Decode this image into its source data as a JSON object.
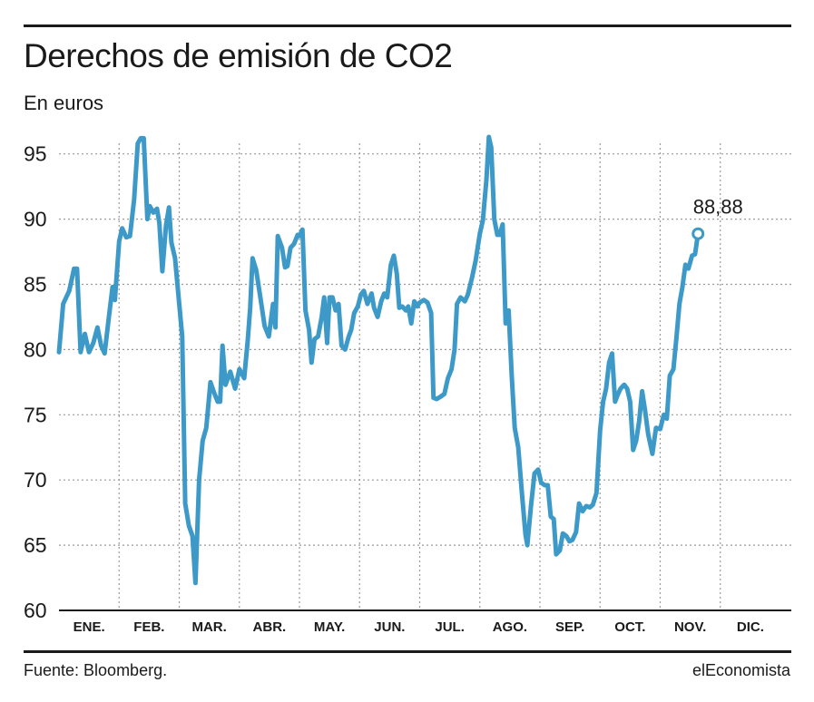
{
  "header": {
    "title": "Derechos de emisión de CO2",
    "subtitle": "En euros"
  },
  "footer": {
    "source": "Fuente: Bloomberg.",
    "brand": "elEconomista"
  },
  "colors": {
    "line": "#3d9ac8",
    "grid": "#9a9a9a",
    "axis": "#1a1a1a"
  },
  "chart_data": {
    "type": "line",
    "title": "Derechos de emisión de CO2",
    "ylabel": "En euros",
    "xlabel": "",
    "ylim": [
      60,
      97
    ],
    "y_ticks": [
      60,
      65,
      70,
      75,
      80,
      85,
      90,
      95
    ],
    "grid": "dotted vertical and horizontal",
    "months": [
      "ENE.",
      "FEB.",
      "MAR.",
      "ABR.",
      "MAY.",
      "JUN.",
      "JUL.",
      "AGO.",
      "SEP.",
      "OCT.",
      "NOV.",
      "DIC."
    ],
    "x_unit": "month index (0 = start of ENE., 12 = end of DIC.)",
    "last_value_label": "88,88",
    "series": [
      {
        "values": [
          [
            0.0,
            79.8
          ],
          [
            0.07,
            83.5
          ],
          [
            0.17,
            84.5
          ],
          [
            0.25,
            86.2
          ],
          [
            0.3,
            86.2
          ],
          [
            0.36,
            79.8
          ],
          [
            0.43,
            81.2
          ],
          [
            0.5,
            79.8
          ],
          [
            0.57,
            80.5
          ],
          [
            0.64,
            81.7
          ],
          [
            0.7,
            80.3
          ],
          [
            0.76,
            79.7
          ],
          [
            0.83,
            82.5
          ],
          [
            0.89,
            84.8
          ],
          [
            0.93,
            83.8
          ],
          [
            1.0,
            88.3
          ],
          [
            1.05,
            89.3
          ],
          [
            1.12,
            88.6
          ],
          [
            1.18,
            88.7
          ],
          [
            1.25,
            91.5
          ],
          [
            1.31,
            95.8
          ],
          [
            1.36,
            96.2
          ],
          [
            1.41,
            96.2
          ],
          [
            1.47,
            90.0
          ],
          [
            1.51,
            91.0
          ],
          [
            1.57,
            90.5
          ],
          [
            1.63,
            90.8
          ],
          [
            1.67,
            89.7
          ],
          [
            1.72,
            86.0
          ],
          [
            1.78,
            89.5
          ],
          [
            1.83,
            90.9
          ],
          [
            1.87,
            88.2
          ],
          [
            1.93,
            87.0
          ],
          [
            2.0,
            83.5
          ],
          [
            2.05,
            81.0
          ],
          [
            2.1,
            68.2
          ],
          [
            2.16,
            66.5
          ],
          [
            2.22,
            65.7
          ],
          [
            2.27,
            62.1
          ],
          [
            2.33,
            70.0
          ],
          [
            2.39,
            73.0
          ],
          [
            2.45,
            74.0
          ],
          [
            2.52,
            77.5
          ],
          [
            2.58,
            76.7
          ],
          [
            2.64,
            76.0
          ],
          [
            2.68,
            76.0
          ],
          [
            2.72,
            80.3
          ],
          [
            2.77,
            77.3
          ],
          [
            2.85,
            78.3
          ],
          [
            2.93,
            77.0
          ],
          [
            3.0,
            78.5
          ],
          [
            3.08,
            77.8
          ],
          [
            3.14,
            80.7
          ],
          [
            3.18,
            83.2
          ],
          [
            3.22,
            87.0
          ],
          [
            3.28,
            86.1
          ],
          [
            3.35,
            84.0
          ],
          [
            3.42,
            81.8
          ],
          [
            3.49,
            81.0
          ],
          [
            3.56,
            83.5
          ],
          [
            3.6,
            81.7
          ],
          [
            3.64,
            88.7
          ],
          [
            3.71,
            87.8
          ],
          [
            3.76,
            86.3
          ],
          [
            3.8,
            86.4
          ],
          [
            3.85,
            87.8
          ],
          [
            3.91,
            88.1
          ],
          [
            3.97,
            88.8
          ],
          [
            4.0,
            88.7
          ],
          [
            4.05,
            89.2
          ],
          [
            4.1,
            83.0
          ],
          [
            4.16,
            81.5
          ],
          [
            4.2,
            79.0
          ],
          [
            4.25,
            80.8
          ],
          [
            4.31,
            81.0
          ],
          [
            4.37,
            82.5
          ],
          [
            4.41,
            84.0
          ],
          [
            4.46,
            80.5
          ],
          [
            4.5,
            84.0
          ],
          [
            4.55,
            84.0
          ],
          [
            4.6,
            83.0
          ],
          [
            4.65,
            83.5
          ],
          [
            4.7,
            80.3
          ],
          [
            4.76,
            80.0
          ],
          [
            4.82,
            81.0
          ],
          [
            4.86,
            81.5
          ],
          [
            4.91,
            82.8
          ],
          [
            4.97,
            83.3
          ],
          [
            5.02,
            84.2
          ],
          [
            5.07,
            84.5
          ],
          [
            5.13,
            83.5
          ],
          [
            5.2,
            84.3
          ],
          [
            5.24,
            83.2
          ],
          [
            5.3,
            82.5
          ],
          [
            5.36,
            83.7
          ],
          [
            5.41,
            84.3
          ],
          [
            5.46,
            84.0
          ],
          [
            5.52,
            86.5
          ],
          [
            5.57,
            87.2
          ],
          [
            5.62,
            85.8
          ],
          [
            5.66,
            83.2
          ],
          [
            5.71,
            83.3
          ],
          [
            5.77,
            83.0
          ],
          [
            5.81,
            83.3
          ],
          [
            5.86,
            82.0
          ],
          [
            5.91,
            83.7
          ],
          [
            5.96,
            83.3
          ],
          [
            6.0,
            83.6
          ],
          [
            6.07,
            83.8
          ],
          [
            6.13,
            83.6
          ],
          [
            6.19,
            82.8
          ],
          [
            6.23,
            76.3
          ],
          [
            6.28,
            76.2
          ],
          [
            6.35,
            76.4
          ],
          [
            6.41,
            76.6
          ],
          [
            6.47,
            77.8
          ],
          [
            6.53,
            78.5
          ],
          [
            6.58,
            80.0
          ],
          [
            6.62,
            83.5
          ],
          [
            6.68,
            84.0
          ],
          [
            6.75,
            83.7
          ],
          [
            6.8,
            84.2
          ],
          [
            6.87,
            85.5
          ],
          [
            6.93,
            86.8
          ],
          [
            7.0,
            88.9
          ],
          [
            7.05,
            89.9
          ],
          [
            7.11,
            93.0
          ],
          [
            7.15,
            96.3
          ],
          [
            7.19,
            95.5
          ],
          [
            7.24,
            90.0
          ],
          [
            7.29,
            88.8
          ],
          [
            7.33,
            88.8
          ],
          [
            7.38,
            89.6
          ],
          [
            7.43,
            82.0
          ],
          [
            7.48,
            83.0
          ],
          [
            7.53,
            78.0
          ],
          [
            7.58,
            74.0
          ],
          [
            7.64,
            72.5
          ],
          [
            7.7,
            69.0
          ],
          [
            7.76,
            65.8
          ],
          [
            7.79,
            65.0
          ],
          [
            7.85,
            68.0
          ],
          [
            7.91,
            70.5
          ],
          [
            7.97,
            70.8
          ],
          [
            8.02,
            69.8
          ],
          [
            8.08,
            69.6
          ],
          [
            8.13,
            69.6
          ],
          [
            8.18,
            67.2
          ],
          [
            8.23,
            67.0
          ],
          [
            8.27,
            64.3
          ],
          [
            8.33,
            64.6
          ],
          [
            8.38,
            65.9
          ],
          [
            8.44,
            65.7
          ],
          [
            8.49,
            65.3
          ],
          [
            8.54,
            65.4
          ],
          [
            8.6,
            66.0
          ],
          [
            8.65,
            68.2
          ],
          [
            8.71,
            67.6
          ],
          [
            8.77,
            68.0
          ],
          [
            8.83,
            67.9
          ],
          [
            8.88,
            68.1
          ],
          [
            8.94,
            69.0
          ],
          [
            9.0,
            73.8
          ],
          [
            9.05,
            76.0
          ],
          [
            9.1,
            77.0
          ],
          [
            9.15,
            79.0
          ],
          [
            9.2,
            79.7
          ],
          [
            9.25,
            76.0
          ],
          [
            9.29,
            76.5
          ],
          [
            9.34,
            77.0
          ],
          [
            9.4,
            77.3
          ],
          [
            9.45,
            77.0
          ],
          [
            9.5,
            76.0
          ],
          [
            9.55,
            72.3
          ],
          [
            9.6,
            73.0
          ],
          [
            9.65,
            74.5
          ],
          [
            9.7,
            76.8
          ],
          [
            9.75,
            75.3
          ],
          [
            9.8,
            73.5
          ],
          [
            9.87,
            72.0
          ],
          [
            9.93,
            74.0
          ],
          [
            10.0,
            73.9
          ],
          [
            10.06,
            75.0
          ],
          [
            10.11,
            74.7
          ],
          [
            10.16,
            78.0
          ],
          [
            10.22,
            78.5
          ],
          [
            10.27,
            80.9
          ],
          [
            10.32,
            83.5
          ],
          [
            10.37,
            84.8
          ],
          [
            10.42,
            86.5
          ],
          [
            10.47,
            86.2
          ],
          [
            10.53,
            87.2
          ],
          [
            10.58,
            87.3
          ],
          [
            10.63,
            88.88
          ]
        ]
      }
    ]
  }
}
